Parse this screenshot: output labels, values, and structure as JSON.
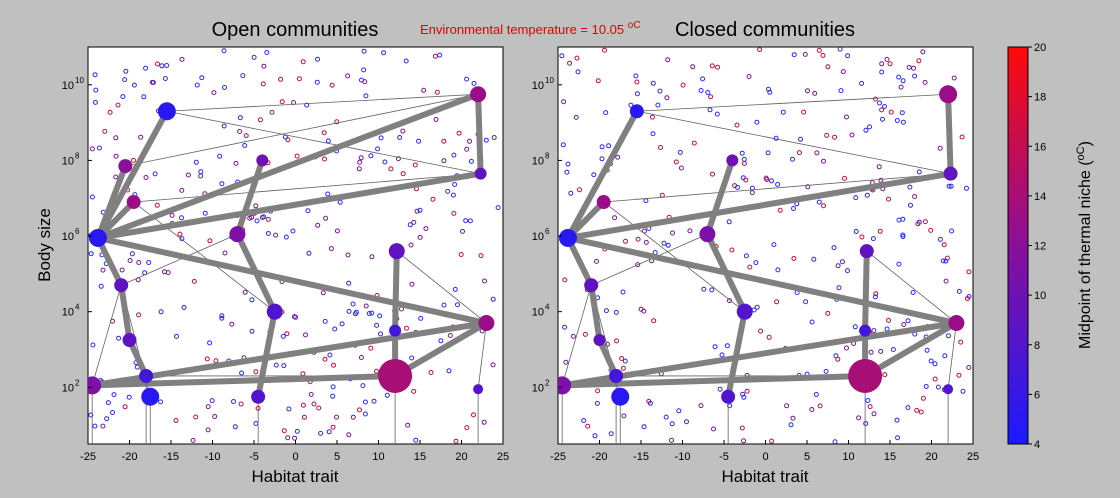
{
  "header": {
    "temperature_label": "Environmental temperature = 10.05 ",
    "temperature_unit": "oC"
  },
  "chart_data": [
    {
      "type": "scatter",
      "title": "Open communities",
      "xlabel": "Habitat trait",
      "ylabel": "Body size",
      "xlim": [
        -25,
        25
      ],
      "ylim_log10": [
        0.5,
        11
      ],
      "yscale": "log",
      "x_ticks": [
        "-25",
        "-20",
        "-15",
        "-10",
        "-5",
        "0",
        "5",
        "10",
        "15",
        "20",
        "25"
      ],
      "y_ticks": [
        "10",
        "10",
        "10",
        "10",
        "10"
      ],
      "y_tick_exponents": [
        "2",
        "4",
        "6",
        "8",
        "10"
      ],
      "grid": false,
      "nodes": [
        {
          "x": -15.5,
          "log_y": 9.3,
          "size": 9,
          "temp": 5
        },
        {
          "x": 22.0,
          "log_y": 9.75,
          "size": 8,
          "temp": 13
        },
        {
          "x": -20.5,
          "log_y": 7.85,
          "size": 7,
          "temp": 12
        },
        {
          "x": -4.0,
          "log_y": 8.0,
          "size": 6,
          "temp": 10
        },
        {
          "x": 22.3,
          "log_y": 7.65,
          "size": 6,
          "temp": 9
        },
        {
          "x": -19.5,
          "log_y": 6.9,
          "size": 7,
          "temp": 13
        },
        {
          "x": -23.8,
          "log_y": 5.95,
          "size": 9,
          "temp": 5
        },
        {
          "x": -7.0,
          "log_y": 6.05,
          "size": 8,
          "temp": 11
        },
        {
          "x": 12.2,
          "log_y": 5.6,
          "size": 8,
          "temp": 9
        },
        {
          "x": -21.0,
          "log_y": 4.7,
          "size": 7,
          "temp": 9
        },
        {
          "x": -2.5,
          "log_y": 4.0,
          "size": 8,
          "temp": 8
        },
        {
          "x": 23.0,
          "log_y": 3.7,
          "size": 8,
          "temp": 13
        },
        {
          "x": 12.0,
          "log_y": 3.5,
          "size": 6,
          "temp": 7
        },
        {
          "x": -20.0,
          "log_y": 3.25,
          "size": 7,
          "temp": 9
        },
        {
          "x": -18.0,
          "log_y": 2.3,
          "size": 7,
          "temp": 7
        },
        {
          "x": -24.5,
          "log_y": 2.05,
          "size": 9,
          "temp": 11
        },
        {
          "x": 12.0,
          "log_y": 2.3,
          "size": 17,
          "temp": 14
        },
        {
          "x": -17.5,
          "log_y": 1.75,
          "size": 9,
          "temp": 5
        },
        {
          "x": -4.5,
          "log_y": 1.75,
          "size": 7,
          "temp": 8
        },
        {
          "x": 22.0,
          "log_y": 1.95,
          "size": 5,
          "temp": 8
        }
      ],
      "thick_links": [
        [
          0,
          6
        ],
        [
          6,
          1
        ],
        [
          1,
          4
        ],
        [
          4,
          6
        ],
        [
          6,
          11
        ],
        [
          11,
          15
        ],
        [
          15,
          16
        ],
        [
          16,
          11
        ],
        [
          3,
          7
        ],
        [
          7,
          10
        ],
        [
          10,
          18
        ],
        [
          8,
          12
        ],
        [
          12,
          16
        ],
        [
          6,
          9
        ],
        [
          9,
          13
        ],
        [
          13,
          14
        ],
        [
          2,
          6
        ],
        [
          5,
          6
        ]
      ],
      "thin_links": [
        [
          0,
          1
        ],
        [
          0,
          4
        ],
        [
          2,
          1
        ],
        [
          5,
          4
        ],
        [
          5,
          10
        ],
        [
          9,
          17
        ],
        [
          14,
          16
        ],
        [
          11,
          19
        ],
        [
          8,
          11
        ],
        [
          12,
          16
        ],
        [
          9,
          13
        ],
        [
          15,
          9
        ],
        [
          7,
          9
        ]
      ]
    },
    {
      "type": "scatter",
      "title": "Closed communities",
      "xlabel": "Habitat trait",
      "ylabel": "",
      "xlim": [
        -25,
        25
      ],
      "ylim_log10": [
        0.5,
        11
      ],
      "yscale": "log",
      "x_ticks": [
        "-25",
        "-20",
        "-15",
        "-10",
        "-5",
        "0",
        "5",
        "10",
        "15",
        "20",
        "25"
      ],
      "y_ticks": [
        "10",
        "10",
        "10",
        "10",
        "10"
      ],
      "y_tick_exponents": [
        "2",
        "4",
        "6",
        "8",
        "10"
      ],
      "grid": false,
      "nodes": [
        {
          "x": -15.5,
          "log_y": 9.3,
          "size": 7,
          "temp": 5
        },
        {
          "x": 22.0,
          "log_y": 9.75,
          "size": 9,
          "temp": 13
        },
        {
          "x": -4.0,
          "log_y": 8.0,
          "size": 6,
          "temp": 10
        },
        {
          "x": 22.3,
          "log_y": 7.65,
          "size": 7,
          "temp": 9
        },
        {
          "x": -19.5,
          "log_y": 6.9,
          "size": 7,
          "temp": 13
        },
        {
          "x": -23.8,
          "log_y": 5.95,
          "size": 9,
          "temp": 5
        },
        {
          "x": -7.0,
          "log_y": 6.05,
          "size": 8,
          "temp": 11
        },
        {
          "x": 12.2,
          "log_y": 5.6,
          "size": 7,
          "temp": 9
        },
        {
          "x": -21.0,
          "log_y": 4.7,
          "size": 7,
          "temp": 9
        },
        {
          "x": -2.5,
          "log_y": 4.0,
          "size": 8,
          "temp": 8
        },
        {
          "x": 23.0,
          "log_y": 3.7,
          "size": 8,
          "temp": 13
        },
        {
          "x": 12.0,
          "log_y": 3.5,
          "size": 6,
          "temp": 7
        },
        {
          "x": -20.0,
          "log_y": 3.25,
          "size": 6,
          "temp": 9
        },
        {
          "x": -18.0,
          "log_y": 2.3,
          "size": 7,
          "temp": 7
        },
        {
          "x": -24.5,
          "log_y": 2.05,
          "size": 9,
          "temp": 11
        },
        {
          "x": 12.0,
          "log_y": 2.3,
          "size": 17,
          "temp": 14
        },
        {
          "x": -17.5,
          "log_y": 1.75,
          "size": 9,
          "temp": 5
        },
        {
          "x": -4.5,
          "log_y": 1.75,
          "size": 7,
          "temp": 8
        },
        {
          "x": 22.0,
          "log_y": 1.95,
          "size": 5,
          "temp": 8
        }
      ],
      "thick_links": [
        [
          0,
          5
        ],
        [
          5,
          3
        ],
        [
          3,
          1
        ],
        [
          5,
          10
        ],
        [
          10,
          14
        ],
        [
          14,
          15
        ],
        [
          15,
          10
        ],
        [
          2,
          6
        ],
        [
          6,
          9
        ],
        [
          9,
          17
        ],
        [
          7,
          11
        ],
        [
          11,
          15
        ],
        [
          5,
          8
        ],
        [
          8,
          12
        ],
        [
          12,
          13
        ],
        [
          4,
          5
        ]
      ],
      "thin_links": [
        [
          0,
          1
        ],
        [
          0,
          3
        ],
        [
          4,
          3
        ],
        [
          4,
          9
        ],
        [
          8,
          16
        ],
        [
          13,
          15
        ],
        [
          10,
          18
        ],
        [
          7,
          10
        ],
        [
          14,
          8
        ],
        [
          6,
          8
        ]
      ]
    }
  ],
  "colorbar": {
    "label": "Midpoint of thermal niche (",
    "label_unit": "oC",
    "label_close": ")",
    "min": 4,
    "max": 20,
    "ticks": [
      "4",
      "6",
      "8",
      "10",
      "12",
      "14",
      "16",
      "18",
      "20"
    ],
    "color_low": "#1a1aff",
    "color_high": "#ff0a0a"
  }
}
